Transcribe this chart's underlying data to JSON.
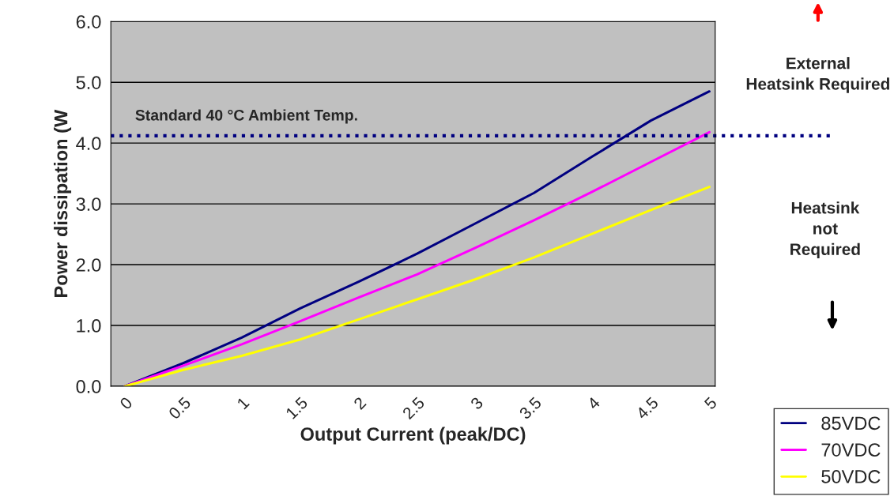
{
  "chart_data": {
    "type": "line",
    "xlabel": "Output Current (peak/DC)",
    "ylabel": "Power dissipation (W",
    "x": [
      0,
      0.5,
      1,
      1.5,
      2,
      2.5,
      3,
      3.5,
      4,
      4.5,
      5
    ],
    "series": [
      {
        "name": "85VDC",
        "color": "#000080",
        "values": [
          0,
          0.38,
          0.8,
          1.28,
          1.72,
          2.18,
          2.68,
          3.18,
          3.78,
          4.37,
          4.85
        ]
      },
      {
        "name": "70VDC",
        "color": "#ff00ff",
        "values": [
          0,
          0.34,
          0.69,
          1.07,
          1.46,
          1.84,
          2.28,
          2.73,
          3.2,
          3.69,
          4.18
        ]
      },
      {
        "name": "50VDC",
        "color": "#ffff00",
        "values": [
          0,
          0.27,
          0.5,
          0.77,
          1.1,
          1.43,
          1.76,
          2.12,
          2.51,
          2.9,
          3.28
        ]
      }
    ],
    "xlim": [
      -0.12,
      5.05
    ],
    "xticks": [
      0,
      0.5,
      1,
      1.5,
      2,
      2.5,
      3,
      3.5,
      4,
      4.5,
      5
    ],
    "ylim": [
      0,
      6
    ],
    "yticks": [
      {
        "value": 0,
        "label": "0.0"
      },
      {
        "value": 1,
        "label": "1.0"
      },
      {
        "value": 2,
        "label": "2.0"
      },
      {
        "value": 3,
        "label": "3.0"
      },
      {
        "value": 4,
        "label": "4.0"
      },
      {
        "value": 5,
        "label": "5.0"
      },
      {
        "value": 6,
        "label": "6.0"
      }
    ],
    "ref_lines": [
      {
        "axis": "y",
        "value": 4.12,
        "label": "Standard 40 °C Ambient Temp.",
        "color": "#000080",
        "line_style": "dotted"
      }
    ],
    "annotations": [
      "External Heatsink Required",
      "Heatsink not Required"
    ],
    "grid": "y",
    "legend": "bottom right",
    "marker": "none",
    "line_style": "solid"
  }
}
